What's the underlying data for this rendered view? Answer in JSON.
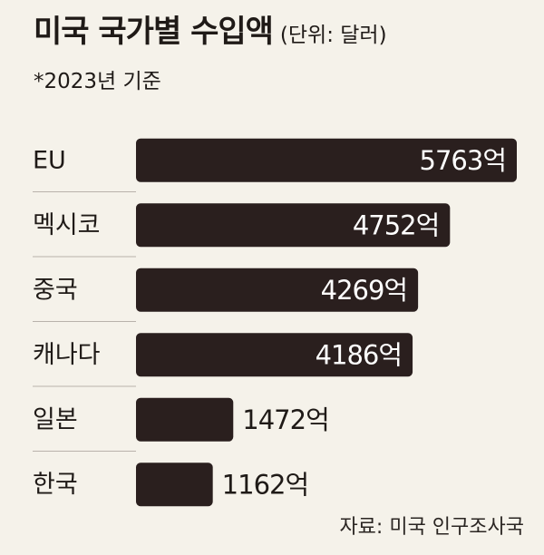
{
  "chart_data": {
    "type": "bar",
    "orientation": "horizontal",
    "title": "미국 국가별 수입액",
    "unit_note": "(단위: 달러)",
    "subtitle": "*2023년 기준",
    "categories": [
      "EU",
      "멕시코",
      "중국",
      "캐나다",
      "일본",
      "한국"
    ],
    "values": [
      5763,
      4752,
      4269,
      4186,
      1472,
      1162
    ],
    "value_labels": [
      "5763억",
      "4752억",
      "4269억",
      "4186억",
      "1472억",
      "1162억"
    ],
    "xlim": [
      0,
      5763
    ],
    "grid": false,
    "legend": "none",
    "source": "자료: 미국 인구조사국"
  },
  "colors": {
    "background": "#f5f2ea",
    "bar": "#2a1f1e",
    "text": "#1f1a17",
    "divider": "#b9b2ab"
  }
}
